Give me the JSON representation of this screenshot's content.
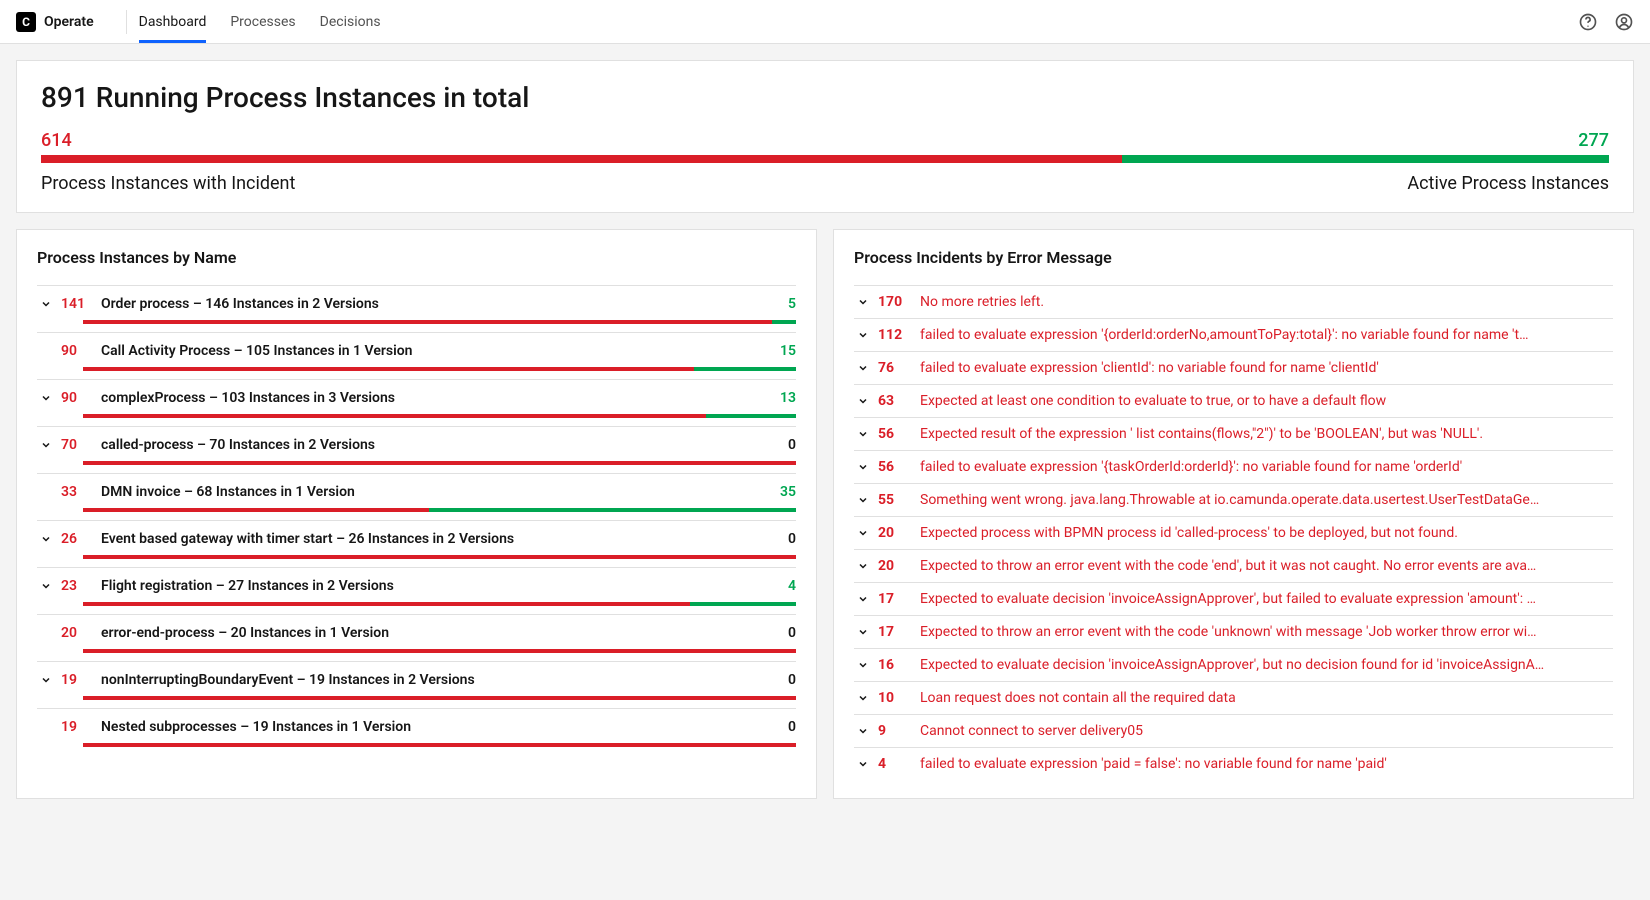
{
  "colors": {
    "red": "#da1e28",
    "green": "#00a651",
    "blue": "#0f62fe"
  },
  "header": {
    "brand": "Operate",
    "logo_letter": "C",
    "nav": [
      {
        "label": "Dashboard",
        "active": true
      },
      {
        "label": "Processes",
        "active": false
      },
      {
        "label": "Decisions",
        "active": false
      }
    ]
  },
  "summary": {
    "total": 891,
    "title_suffix": "Running Process Instances in total",
    "incidents": 614,
    "active": 277,
    "label_incidents": "Process Instances with Incident",
    "label_active": "Active Process Instances"
  },
  "panels": {
    "by_name_title": "Process Instances by Name",
    "incidents_title": "Process Incidents by Error Message"
  },
  "processes": [
    {
      "expandable": true,
      "incidents": 141,
      "active": 5,
      "name": "Order process – 146 Instances in 2 Versions"
    },
    {
      "expandable": false,
      "incidents": 90,
      "active": 15,
      "name": "Call Activity Process – 105 Instances in 1 Version"
    },
    {
      "expandable": true,
      "incidents": 90,
      "active": 13,
      "name": "complexProcess – 103 Instances in 3 Versions"
    },
    {
      "expandable": true,
      "incidents": 70,
      "active": 0,
      "name": "called-process – 70 Instances in 2 Versions"
    },
    {
      "expandable": false,
      "incidents": 33,
      "active": 35,
      "name": "DMN invoice – 68 Instances in 1 Version"
    },
    {
      "expandable": true,
      "incidents": 26,
      "active": 0,
      "name": "Event based gateway with timer start – 26 Instances in 2 Versions"
    },
    {
      "expandable": true,
      "incidents": 23,
      "active": 4,
      "name": "Flight registration – 27 Instances in 2 Versions"
    },
    {
      "expandable": false,
      "incidents": 20,
      "active": 0,
      "name": "error-end-process – 20 Instances in 1 Version"
    },
    {
      "expandable": true,
      "incidents": 19,
      "active": 0,
      "name": "nonInterruptingBoundaryEvent – 19 Instances in 2 Versions"
    },
    {
      "expandable": false,
      "incidents": 19,
      "active": 0,
      "name": "Nested subprocesses – 19 Instances in 1 Version"
    }
  ],
  "incidents": [
    {
      "count": 170,
      "message": "No more retries left."
    },
    {
      "count": 112,
      "message": "failed to evaluate expression '{orderId:orderNo,amountToPay:total}': no variable found for name 't…"
    },
    {
      "count": 76,
      "message": "failed to evaluate expression 'clientId': no variable found for name 'clientId'"
    },
    {
      "count": 63,
      "message": "Expected at least one condition to evaluate to true, or to have a default flow"
    },
    {
      "count": 56,
      "message": "Expected result of the expression ' list contains(flows,\"2\")' to be 'BOOLEAN', but was 'NULL'."
    },
    {
      "count": 56,
      "message": "failed to evaluate expression '{taskOrderId:orderId}': no variable found for name 'orderId'"
    },
    {
      "count": 55,
      "message": "Something went wrong. java.lang.Throwable at io.camunda.operate.data.usertest.UserTestDataGe…"
    },
    {
      "count": 20,
      "message": "Expected process with BPMN process id 'called-process' to be deployed, but not found."
    },
    {
      "count": 20,
      "message": "Expected to throw an error event with the code 'end', but it was not caught. No error events are ava…"
    },
    {
      "count": 17,
      "message": "Expected to evaluate decision 'invoiceAssignApprover', but failed to evaluate expression 'amount': …"
    },
    {
      "count": 17,
      "message": "Expected to throw an error event with the code 'unknown' with message 'Job worker throw error wi…"
    },
    {
      "count": 16,
      "message": "Expected to evaluate decision 'invoiceAssignApprover', but no decision found for id 'invoiceAssignA…"
    },
    {
      "count": 10,
      "message": "Loan request does not contain all the required data"
    },
    {
      "count": 9,
      "message": "Cannot connect to server delivery05"
    },
    {
      "count": 4,
      "message": "failed to evaluate expression 'paid = false': no variable found for name 'paid'"
    }
  ]
}
